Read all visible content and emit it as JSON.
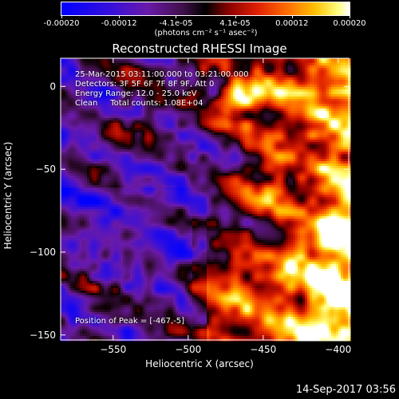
{
  "colorbar": {
    "ticks": [
      {
        "label": "-0.00020",
        "value": -0.0002
      },
      {
        "label": "-0.00012",
        "value": -0.00012
      },
      {
        "label": "-4.1e-05",
        "value": -4.1e-05
      },
      {
        "label": "4.1e-05",
        "value": 4.1e-05
      },
      {
        "label": "0.00012",
        "value": 0.00012
      },
      {
        "label": "0.00020",
        "value": 0.0002
      }
    ],
    "units": "(photons cm⁻² s⁻¹ asec⁻²)",
    "range": [
      -0.0002,
      0.0002
    ]
  },
  "chart_data": {
    "type": "heatmap",
    "title": "Reconstructed RHESSI Image",
    "xlabel": "Heliocentric X (arcsec)",
    "ylabel": "Heliocentric Y (arcsec)",
    "xlim": [
      -585,
      -393
    ],
    "ylim": [
      -153,
      17
    ],
    "xticks": [
      -550,
      -500,
      -450,
      -400
    ],
    "yticks": [
      0,
      -50,
      -100,
      -150
    ],
    "annotations": [
      "25-Mar-2015 03:11:00.000 to 03:21:00.000",
      "Detectors: 3F 5F 6F 7F 8F 9F, Att 0",
      "Energy Range: 12.0 - 25.0 keV",
      "Clean     Total counts: 1.08E+04"
    ],
    "peak_label": "Position of Peak = [-467,-5]",
    "peak": [
      -467,
      -5
    ]
  },
  "footer": {
    "date": "14-Sep-2017 03:56"
  }
}
